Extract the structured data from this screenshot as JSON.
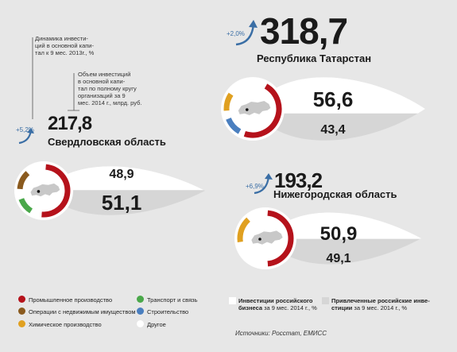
{
  "annotations": {
    "dynamics": "Динамика инвести-\nций в основной капи-\nтал к 9 мес. 2013г., %",
    "volume": "Объем инвестиций\nв основной капи-\nтал по полному кругу\nорганизаций за 9\nмес. 2014 г., млрд. руб."
  },
  "colors": {
    "industry": "#b5121b",
    "transport": "#4aa84a",
    "realty": "#8a5a1e",
    "construction": "#4a7fbf",
    "chemical": "#e0a020",
    "other": "#ffffff",
    "russian_business": "#ffffff",
    "attracted": "#d6d6d6",
    "arrow": "#3a6ea5"
  },
  "chart_data": [
    {
      "type": "bar",
      "region": "Свердловская область",
      "total": "217,8",
      "growth": "+5,2%",
      "categories": [
        "Инвестиции российского бизнеса",
        "Привлеченные российские инвестиции"
      ],
      "values": [
        48.9,
        51.1
      ],
      "value_labels": [
        "48,9",
        "51,1"
      ],
      "unit": "%"
    },
    {
      "type": "bar",
      "region": "Республика Татарстан",
      "total": "318,7",
      "growth": "+2,0%",
      "categories": [
        "Инвестиции российского бизнеса",
        "Привлеченные российские инвестиции"
      ],
      "values": [
        56.6,
        43.4
      ],
      "value_labels": [
        "56,6",
        "43,4"
      ],
      "unit": "%"
    },
    {
      "type": "bar",
      "region": "Нижегородская область",
      "total": "193,2",
      "growth": "+6,9%",
      "categories": [
        "Инвестиции российского бизнеса",
        "Привлеченные российские инвестиции"
      ],
      "values": [
        50.9,
        49.1
      ],
      "value_labels": [
        "50,9",
        "49,1"
      ],
      "unit": "%"
    }
  ],
  "legend": {
    "industry": "Промышленное производство",
    "transport": "Транспорт и связь",
    "realty": "Операции с недвижимым имуществом",
    "construction": "Строительство",
    "chemical": "Химическое производство",
    "other": "Другое",
    "business_main": "Инвестиции российского",
    "business_sub": "бизнеса",
    "business_tail": " за 9 мес. 2014 г., %",
    "attracted_main": "Привлеченные российские инве-",
    "attracted_sub": "стиции",
    "attracted_tail": " за 9 мес. 2014 г., %"
  },
  "source": "Источники: Росстат, ЕМИСС"
}
